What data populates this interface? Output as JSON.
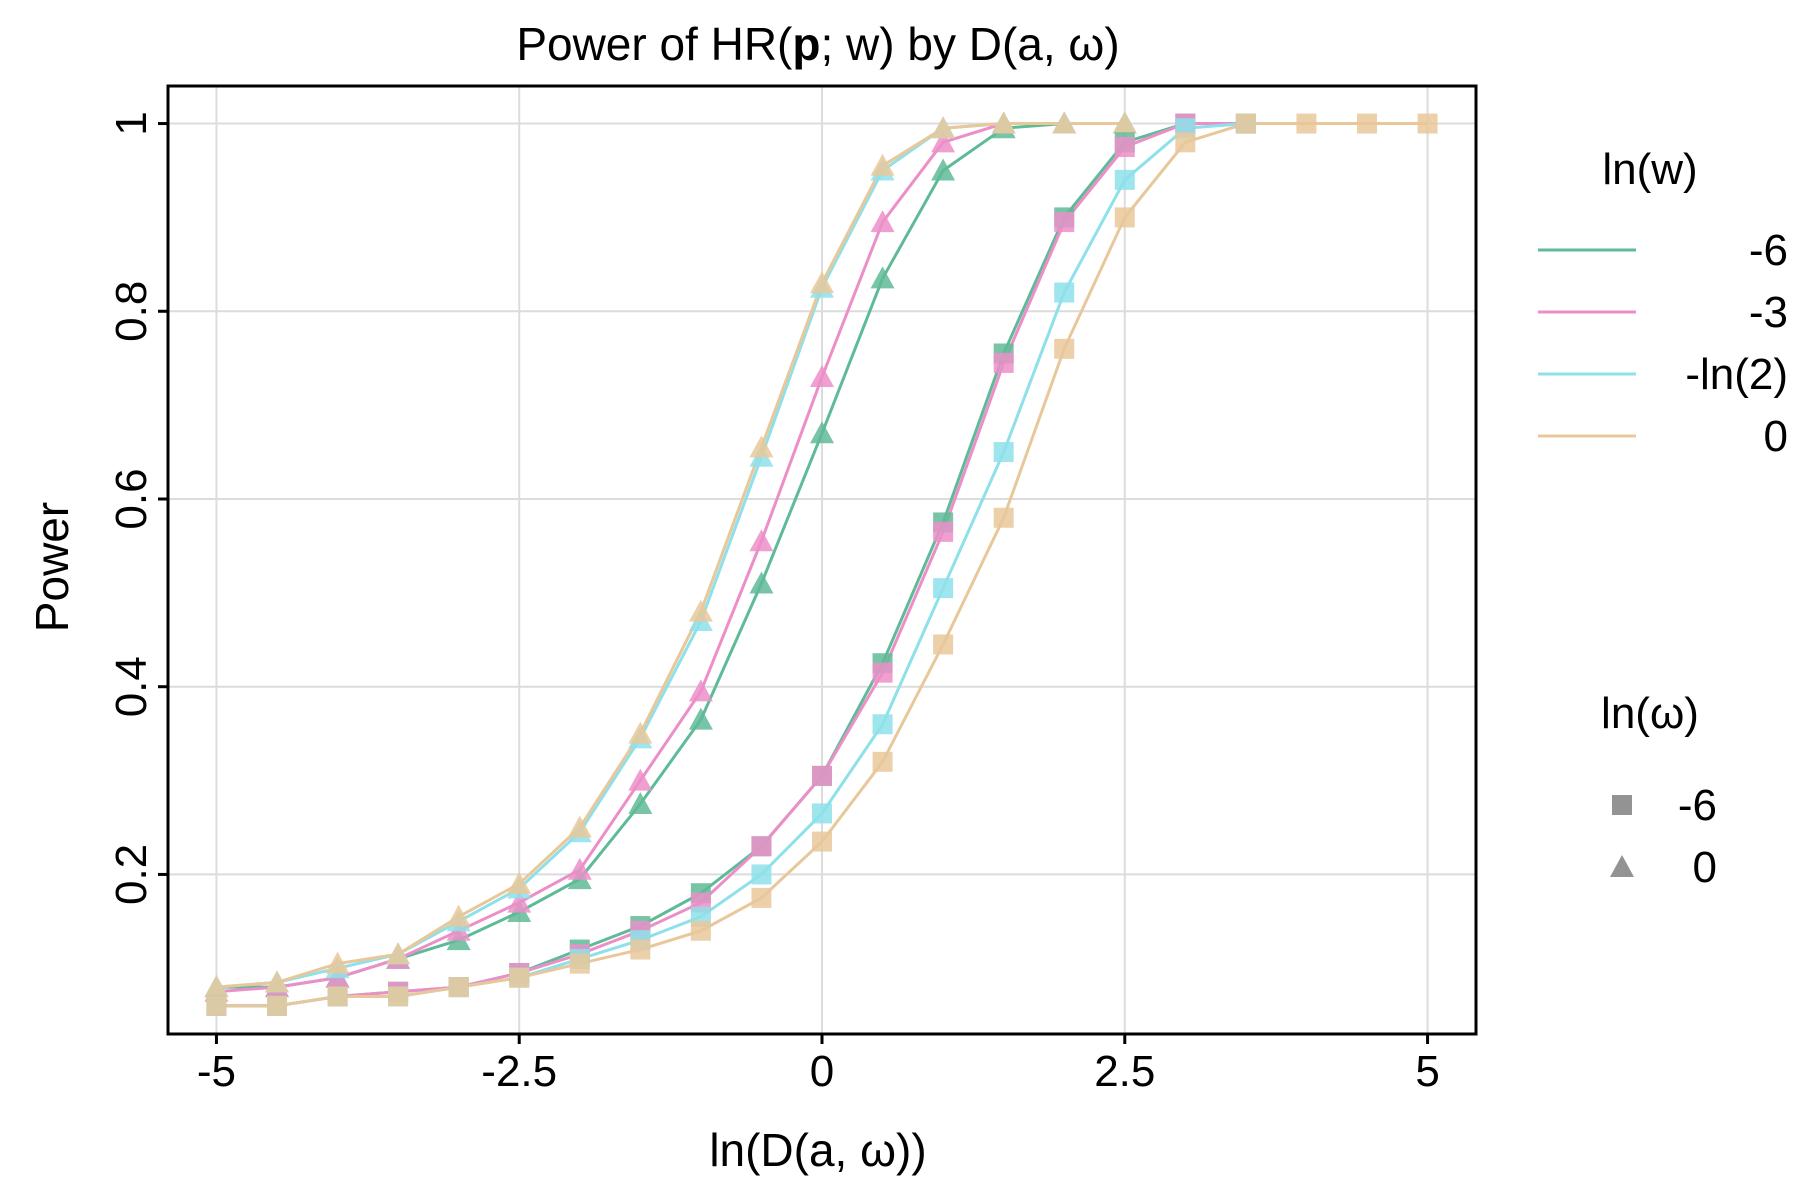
{
  "chart_data": {
    "type": "line",
    "title": "Power of HR(p; w) by D(a, ω)",
    "title_parts": {
      "pre": "Power of HR(",
      "bold": "p",
      "post": "; w) by D(a, ω)"
    },
    "xlabel": "ln(D(a, ω))",
    "ylabel": "Power",
    "xlim": [
      -5.4,
      5.4
    ],
    "ylim": [
      0.03,
      1.04
    ],
    "x_ticks": [
      -5,
      -2.5,
      0,
      2.5,
      5
    ],
    "x_tick_labels": [
      "-5",
      "-2.5",
      "0",
      "2.5",
      "5"
    ],
    "y_ticks": [
      0.2,
      0.4,
      0.6,
      0.8,
      1
    ],
    "y_tick_labels": [
      "0.2",
      "0.4",
      "0.6",
      "0.8",
      "1"
    ],
    "grid": true,
    "legend_color": {
      "title": "ln(w)",
      "placement": "right-top",
      "entries": [
        {
          "label": "-6",
          "color": "#5fbb97"
        },
        {
          "label": "-3",
          "color": "#ec8fc9"
        },
        {
          "label": "-ln(2)",
          "color": "#8ee0ea"
        },
        {
          "label": "0",
          "color": "#e8c89a"
        }
      ]
    },
    "legend_shape": {
      "title": "ln(ω)",
      "placement": "right-bottom",
      "entries": [
        {
          "label": "-6",
          "shape": "square"
        },
        {
          "label": "0",
          "shape": "triangle"
        }
      ]
    },
    "series": [
      {
        "name": "ln(w)=-6, ln(ω)=0",
        "color": "#5fbb97",
        "shape": "triangle",
        "x": [
          -5,
          -4.5,
          -4,
          -3.5,
          -3,
          -2.5,
          -2,
          -1.5,
          -1,
          -0.5,
          0,
          0.5,
          1,
          1.5,
          2,
          2.5
        ],
        "y": [
          0.08,
          0.08,
          0.09,
          0.11,
          0.13,
          0.16,
          0.195,
          0.275,
          0.365,
          0.51,
          0.67,
          0.835,
          0.95,
          0.995,
          1,
          1
        ]
      },
      {
        "name": "ln(w)=-3, ln(ω)=0",
        "color": "#ec8fc9",
        "shape": "triangle",
        "x": [
          -5,
          -4.5,
          -4,
          -3.5,
          -3,
          -2.5,
          -2,
          -1.5,
          -1,
          -0.5,
          0,
          0.5,
          1,
          1.5,
          2,
          2.5
        ],
        "y": [
          0.075,
          0.08,
          0.09,
          0.11,
          0.14,
          0.17,
          0.205,
          0.3,
          0.395,
          0.555,
          0.73,
          0.895,
          0.98,
          1,
          1,
          1
        ]
      },
      {
        "name": "ln(w)=-ln(2), ln(ω)=0",
        "color": "#8ee0ea",
        "shape": "triangle",
        "x": [
          -5,
          -4.5,
          -4,
          -3.5,
          -3,
          -2.5,
          -2,
          -1.5,
          -1,
          -0.5,
          0,
          0.5,
          1,
          1.5,
          2,
          2.5
        ],
        "y": [
          0.08,
          0.085,
          0.1,
          0.115,
          0.15,
          0.185,
          0.245,
          0.345,
          0.47,
          0.645,
          0.825,
          0.95,
          0.995,
          1,
          1,
          1
        ]
      },
      {
        "name": "ln(w)=0, ln(ω)=0",
        "color": "#e8c89a",
        "shape": "triangle",
        "x": [
          -5,
          -4.5,
          -4,
          -3.5,
          -3,
          -2.5,
          -2,
          -1.5,
          -1,
          -0.5,
          0,
          0.5,
          1,
          1.5,
          2,
          2.5
        ],
        "y": [
          0.08,
          0.085,
          0.105,
          0.115,
          0.155,
          0.19,
          0.25,
          0.35,
          0.48,
          0.655,
          0.83,
          0.955,
          0.995,
          1,
          1,
          1
        ]
      },
      {
        "name": "ln(w)=-6, ln(ω)=-6",
        "color": "#5fbb97",
        "shape": "square",
        "x": [
          -5,
          -4.5,
          -4,
          -3.5,
          -3,
          -2.5,
          -2,
          -1.5,
          -1,
          -0.5,
          0,
          0.5,
          1,
          1.5,
          2,
          2.5,
          3,
          3.5
        ],
        "y": [
          0.06,
          0.06,
          0.07,
          0.075,
          0.08,
          0.095,
          0.12,
          0.145,
          0.18,
          0.23,
          0.305,
          0.425,
          0.575,
          0.755,
          0.9,
          0.98,
          1,
          1
        ]
      },
      {
        "name": "ln(w)=-3, ln(ω)=-6",
        "color": "#ec8fc9",
        "shape": "square",
        "x": [
          -5,
          -4.5,
          -4,
          -3.5,
          -3,
          -2.5,
          -2,
          -1.5,
          -1,
          -0.5,
          0,
          0.5,
          1,
          1.5,
          2,
          2.5,
          3,
          3.5
        ],
        "y": [
          0.06,
          0.06,
          0.07,
          0.075,
          0.08,
          0.095,
          0.115,
          0.14,
          0.17,
          0.23,
          0.305,
          0.415,
          0.565,
          0.745,
          0.895,
          0.975,
          1,
          1
        ]
      },
      {
        "name": "ln(w)=-ln(2), ln(ω)=-6",
        "color": "#8ee0ea",
        "shape": "square",
        "x": [
          -5,
          -4.5,
          -4,
          -3.5,
          -3,
          -2.5,
          -2,
          -1.5,
          -1,
          -0.5,
          0,
          0.5,
          1,
          1.5,
          2,
          2.5,
          3,
          3.5
        ],
        "y": [
          0.06,
          0.06,
          0.07,
          0.07,
          0.08,
          0.09,
          0.11,
          0.13,
          0.155,
          0.2,
          0.265,
          0.36,
          0.505,
          0.65,
          0.82,
          0.94,
          0.995,
          1
        ]
      },
      {
        "name": "ln(w)=0, ln(ω)=-6",
        "color": "#e8c89a",
        "shape": "square",
        "x": [
          -5,
          -4.5,
          -4,
          -3.5,
          -3,
          -2.5,
          -2,
          -1.5,
          -1,
          -0.5,
          0,
          0.5,
          1,
          1.5,
          2,
          2.5,
          3,
          3.5,
          4,
          4.5,
          5
        ],
        "y": [
          0.06,
          0.06,
          0.07,
          0.07,
          0.08,
          0.09,
          0.105,
          0.12,
          0.14,
          0.175,
          0.235,
          0.32,
          0.445,
          0.58,
          0.76,
          0.9,
          0.98,
          1,
          1,
          1,
          1
        ]
      }
    ]
  }
}
